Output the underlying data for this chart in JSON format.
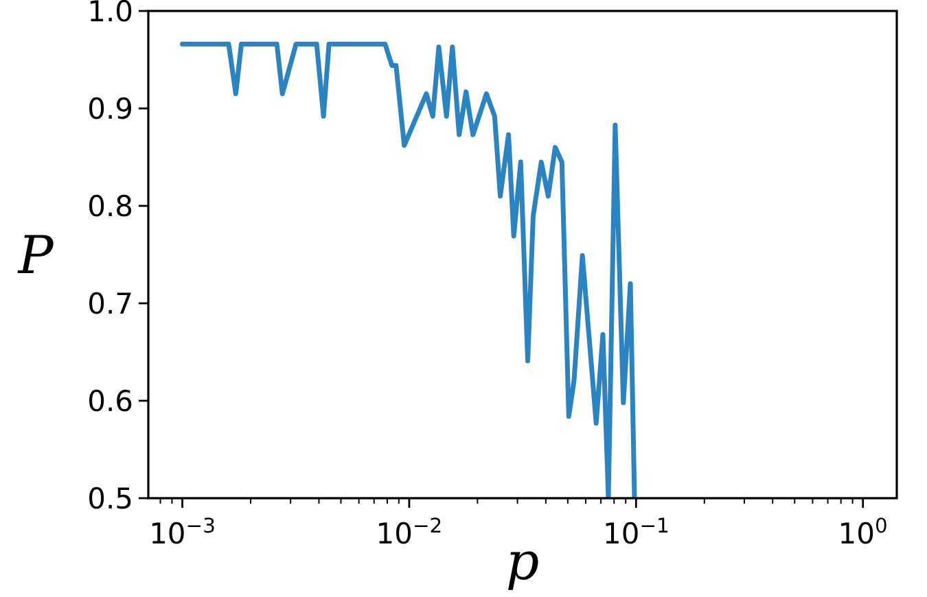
{
  "chart_data": {
    "type": "line",
    "xlabel": "p",
    "ylabel": "P",
    "log": "x",
    "grid": false,
    "marker": "none",
    "line_style": "solid",
    "xlim": [
      0.000708,
      1.41
    ],
    "ylim": [
      0.5,
      1.0
    ],
    "xticks": [
      {
        "value": 0.0008,
        "label": null
      },
      {
        "value": 0.0009,
        "label": null
      },
      {
        "value": 0.001,
        "label": "10$^{−3}$"
      },
      {
        "value": 0.002,
        "label": null
      },
      {
        "value": 0.003,
        "label": null
      },
      {
        "value": 0.004,
        "label": null
      },
      {
        "value": 0.005,
        "label": null
      },
      {
        "value": 0.006,
        "label": null
      },
      {
        "value": 0.007,
        "label": null
      },
      {
        "value": 0.008,
        "label": null
      },
      {
        "value": 0.009,
        "label": null
      },
      {
        "value": 0.01,
        "label": "10$^{−2}$"
      },
      {
        "value": 0.02,
        "label": null
      },
      {
        "value": 0.03,
        "label": null
      },
      {
        "value": 0.04,
        "label": null
      },
      {
        "value": 0.05,
        "label": null
      },
      {
        "value": 0.06,
        "label": null
      },
      {
        "value": 0.07,
        "label": null
      },
      {
        "value": 0.08,
        "label": null
      },
      {
        "value": 0.09,
        "label": null
      },
      {
        "value": 0.1,
        "label": "10$^{−1}$"
      },
      {
        "value": 0.2,
        "label": null
      },
      {
        "value": 0.3,
        "label": null
      },
      {
        "value": 0.4,
        "label": null
      },
      {
        "value": 0.5,
        "label": null
      },
      {
        "value": 0.6,
        "label": null
      },
      {
        "value": 0.7,
        "label": null
      },
      {
        "value": 0.8,
        "label": null
      },
      {
        "value": 0.9,
        "label": null
      },
      {
        "value": 1,
        "label": "10$^{0}$"
      }
    ],
    "yticks": [
      0.5,
      0.6,
      0.7,
      0.8,
      0.9,
      {
        "value": 1,
        "label": "1.0"
      }
    ],
    "x": [
      0.001,
      0.0016,
      0.00172,
      0.00182,
      0.00261,
      0.00276,
      0.00317,
      0.00391,
      0.00419,
      0.00443,
      0.00783,
      0.00839,
      0.00875,
      0.00951,
      0.0119,
      0.0127,
      0.0135,
      0.0146,
      0.0155,
      0.0166,
      0.0178,
      0.0191,
      0.0219,
      0.0238,
      0.0252,
      0.0274,
      0.0289,
      0.031,
      0.0333,
      0.0352,
      0.0382,
      0.041,
      0.044,
      0.0471,
      0.0505,
      0.0533,
      0.058,
      0.0667,
      0.0714,
      0.0755,
      0.0809,
      0.0879,
      0.0944,
      0.0984
    ],
    "series": [
      {
        "color": "#2b83c2",
        "values": [
          0.966,
          0.966,
          0.915,
          0.966,
          0.966,
          0.915,
          0.966,
          0.966,
          0.892,
          0.966,
          0.966,
          0.944,
          0.944,
          0.862,
          0.915,
          0.892,
          0.963,
          0.892,
          0.963,
          0.873,
          0.917,
          0.873,
          0.915,
          0.892,
          0.81,
          0.873,
          0.769,
          0.845,
          0.641,
          0.79,
          0.845,
          0.81,
          0.86,
          0.845,
          0.584,
          0.621,
          0.749,
          0.577,
          0.668,
          0.5,
          0.883,
          0.598,
          0.72,
          0.5
        ]
      }
    ]
  }
}
